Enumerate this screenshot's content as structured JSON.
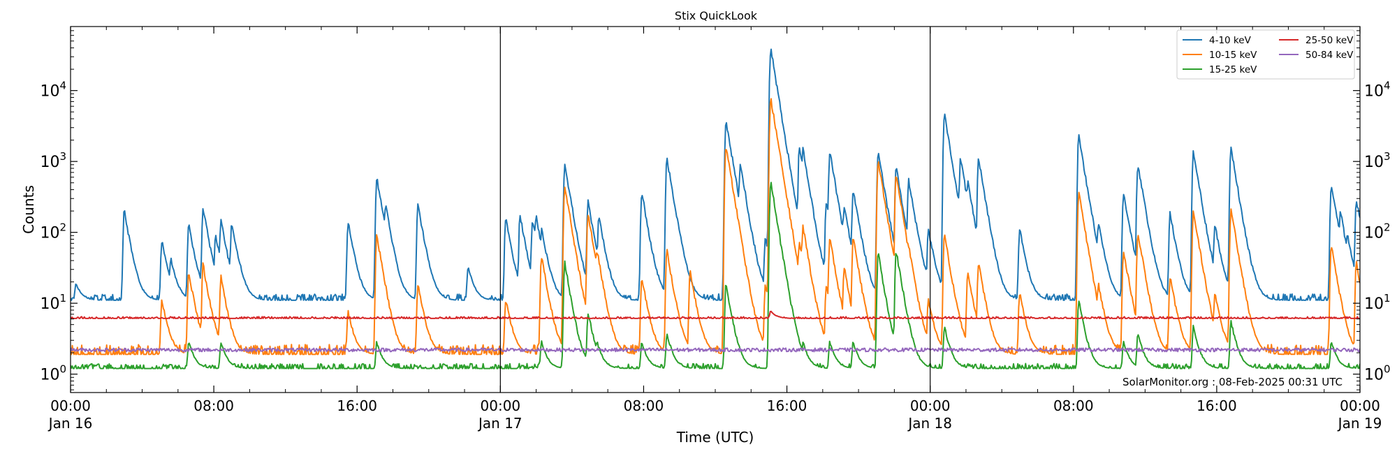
{
  "chart_data": {
    "type": "line",
    "title": "Stix QuickLook",
    "xlabel": "Time (UTC)",
    "ylabel": "Counts",
    "yscale": "log",
    "ylim": [
      0.55,
      80000
    ],
    "xlim": [
      "2025-01-16T00:00",
      "2025-01-19T00:00"
    ],
    "x_ticks": [
      {
        "line1": "00:00",
        "line2": "Jan 16",
        "hour": 0
      },
      {
        "line1": "08:00",
        "line2": "",
        "hour": 8
      },
      {
        "line1": "16:00",
        "line2": "",
        "hour": 16
      },
      {
        "line1": "00:00",
        "line2": "Jan 17",
        "hour": 24
      },
      {
        "line1": "08:00",
        "line2": "",
        "hour": 32
      },
      {
        "line1": "16:00",
        "line2": "",
        "hour": 40
      },
      {
        "line1": "00:00",
        "line2": "Jan 18",
        "hour": 48
      },
      {
        "line1": "08:00",
        "line2": "",
        "hour": 56
      },
      {
        "line1": "16:00",
        "line2": "",
        "hour": 64
      },
      {
        "line1": "00:00",
        "line2": "Jan 19",
        "hour": 72
      }
    ],
    "y_ticks": [
      {
        "base": "10",
        "exp": "0",
        "value": 1
      },
      {
        "base": "10",
        "exp": "1",
        "value": 10
      },
      {
        "base": "10",
        "exp": "2",
        "value": 100
      },
      {
        "base": "10",
        "exp": "3",
        "value": 1000
      },
      {
        "base": "10",
        "exp": "4",
        "value": 10000
      }
    ],
    "day_boundaries_hour": [
      24,
      48
    ],
    "legend_position": "top-right",
    "series": [
      {
        "name": "4-10 keV",
        "color": "#1f77b4",
        "baseline": 11,
        "noise": 0.09,
        "peaks": [
          [
            0.3,
            20
          ],
          [
            3.0,
            220
          ],
          [
            5.1,
            80
          ],
          [
            5.6,
            45
          ],
          [
            6.6,
            140
          ],
          [
            7.4,
            240
          ],
          [
            8.1,
            100
          ],
          [
            8.4,
            160
          ],
          [
            9.0,
            150
          ],
          [
            15.5,
            150
          ],
          [
            17.1,
            650
          ],
          [
            17.4,
            240
          ],
          [
            17.6,
            260
          ],
          [
            19.4,
            270
          ],
          [
            22.2,
            35
          ],
          [
            24.3,
            170
          ],
          [
            25.1,
            190
          ],
          [
            25.8,
            160
          ],
          [
            26.0,
            180
          ],
          [
            26.3,
            120
          ],
          [
            27.6,
            1000
          ],
          [
            28.1,
            150
          ],
          [
            28.9,
            290
          ],
          [
            29.5,
            180
          ],
          [
            31.9,
            400
          ],
          [
            33.3,
            1200
          ],
          [
            34.0,
            120
          ],
          [
            36.6,
            4200
          ],
          [
            37.4,
            1000
          ],
          [
            38.8,
            90
          ],
          [
            39.1,
            42000
          ],
          [
            39.2,
            9000
          ],
          [
            40.3,
            220
          ],
          [
            40.7,
            1800
          ],
          [
            40.9,
            1600
          ],
          [
            42.2,
            290
          ],
          [
            42.4,
            1500
          ],
          [
            43.2,
            250
          ],
          [
            43.7,
            440
          ],
          [
            45.1,
            1500
          ],
          [
            46.1,
            900
          ],
          [
            46.8,
            600
          ],
          [
            47.9,
            120
          ],
          [
            48.8,
            5000
          ],
          [
            49.0,
            120
          ],
          [
            49.4,
            450
          ],
          [
            49.7,
            1200
          ],
          [
            49.8,
            500
          ],
          [
            50.1,
            600
          ],
          [
            50.7,
            1200
          ],
          [
            53.0,
            120
          ],
          [
            56.3,
            2500
          ],
          [
            57.4,
            150
          ],
          [
            58.8,
            400
          ],
          [
            59.6,
            1000
          ],
          [
            61.4,
            200
          ],
          [
            62.7,
            1500
          ],
          [
            63.9,
            140
          ],
          [
            64.8,
            1700
          ],
          [
            64.9,
            900
          ],
          [
            65.4,
            100
          ],
          [
            70.4,
            520
          ],
          [
            70.9,
            220
          ],
          [
            71.3,
            100
          ],
          [
            71.8,
            320
          ]
        ]
      },
      {
        "name": "10-15 keV",
        "color": "#ff7f0e",
        "baseline": 1.9,
        "noise": 0.14,
        "peaks": [
          [
            5.1,
            12
          ],
          [
            6.6,
            30
          ],
          [
            7.4,
            38
          ],
          [
            8.4,
            25
          ],
          [
            8.6,
            12
          ],
          [
            15.5,
            8
          ],
          [
            17.1,
            100
          ],
          [
            17.4,
            25
          ],
          [
            19.4,
            20
          ],
          [
            24.3,
            12
          ],
          [
            26.3,
            50
          ],
          [
            27.6,
            500
          ],
          [
            28.9,
            200
          ],
          [
            29.4,
            60
          ],
          [
            31.9,
            25
          ],
          [
            33.3,
            60
          ],
          [
            34.6,
            30
          ],
          [
            36.6,
            1800
          ],
          [
            37.4,
            18
          ],
          [
            38.8,
            20
          ],
          [
            39.1,
            8500
          ],
          [
            39.2,
            3000
          ],
          [
            40.3,
            25
          ],
          [
            40.7,
            80
          ],
          [
            40.9,
            130
          ],
          [
            42.2,
            20
          ],
          [
            42.4,
            90
          ],
          [
            43.2,
            35
          ],
          [
            43.7,
            90
          ],
          [
            45.1,
            1100
          ],
          [
            46.1,
            700
          ],
          [
            46.8,
            70
          ],
          [
            47.9,
            12
          ],
          [
            48.8,
            100
          ],
          [
            49.0,
            25
          ],
          [
            50.1,
            30
          ],
          [
            50.7,
            40
          ],
          [
            53.0,
            15
          ],
          [
            56.3,
            400
          ],
          [
            57.4,
            20
          ],
          [
            58.8,
            60
          ],
          [
            59.6,
            110
          ],
          [
            61.4,
            25
          ],
          [
            62.7,
            220
          ],
          [
            63.9,
            15
          ],
          [
            64.8,
            230
          ],
          [
            64.9,
            60
          ],
          [
            65.4,
            12
          ],
          [
            70.4,
            70
          ],
          [
            70.9,
            12
          ],
          [
            71.8,
            40
          ]
        ]
      },
      {
        "name": "15-25 keV",
        "color": "#2ca02c",
        "baseline": 1.2,
        "noise": 0.07,
        "peaks": [
          [
            6.6,
            3
          ],
          [
            8.4,
            3
          ],
          [
            17.1,
            3
          ],
          [
            26.3,
            3
          ],
          [
            27.6,
            40
          ],
          [
            28.9,
            8
          ],
          [
            29.4,
            3
          ],
          [
            31.9,
            3
          ],
          [
            33.3,
            4
          ],
          [
            36.6,
            20
          ],
          [
            39.1,
            550
          ],
          [
            39.2,
            30
          ],
          [
            40.7,
            3
          ],
          [
            40.9,
            3
          ],
          [
            42.4,
            3
          ],
          [
            43.7,
            3
          ],
          [
            45.1,
            55
          ],
          [
            46.1,
            60
          ],
          [
            46.8,
            4
          ],
          [
            48.8,
            5
          ],
          [
            56.3,
            12
          ],
          [
            58.8,
            3
          ],
          [
            59.6,
            4
          ],
          [
            62.7,
            5
          ],
          [
            64.8,
            6
          ],
          [
            70.4,
            3
          ]
        ]
      },
      {
        "name": "25-50 keV",
        "color": "#d62728",
        "baseline": 6.1,
        "noise": 0.025,
        "peaks": [
          [
            39.1,
            8
          ]
        ]
      },
      {
        "name": "50-84 keV",
        "color": "#9467bd",
        "baseline": 2.2,
        "noise": 0.025,
        "peaks": []
      }
    ],
    "annotation": "SolarMonitor.org : 08-Feb-2025 00:31 UTC"
  }
}
